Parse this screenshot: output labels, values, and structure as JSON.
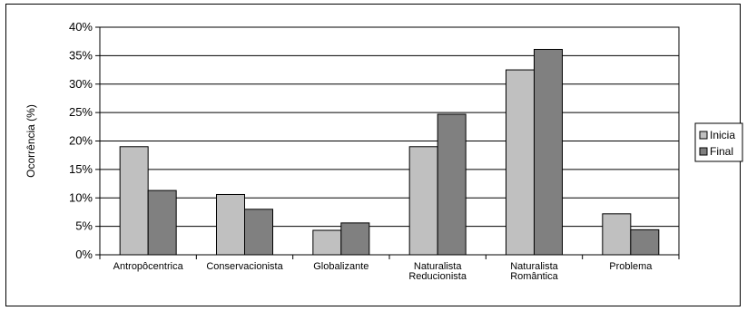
{
  "chart_data": {
    "type": "bar",
    "title": "",
    "xlabel": "",
    "ylabel": "Ocorrência (%)",
    "ylim": [
      0,
      40
    ],
    "yticks": [
      "0%",
      "5%",
      "10%",
      "15%",
      "20%",
      "25%",
      "30%",
      "35%",
      "40%"
    ],
    "grid": true,
    "legend_position": "right",
    "categories": [
      [
        "Antropôcentrica"
      ],
      [
        "Conservacionista"
      ],
      [
        "Globalizante"
      ],
      [
        "Naturalista",
        "Reducionista"
      ],
      [
        "Naturalista",
        "Romântica"
      ],
      [
        "Problema"
      ]
    ],
    "series": [
      {
        "name": "Inicia",
        "color": "#c0c0c0",
        "values": [
          19,
          10.6,
          4.3,
          19,
          32.5,
          7.2
        ]
      },
      {
        "name": "Final",
        "color": "#808080",
        "values": [
          11.3,
          8,
          5.6,
          24.7,
          36.1,
          4.4
        ]
      }
    ]
  }
}
